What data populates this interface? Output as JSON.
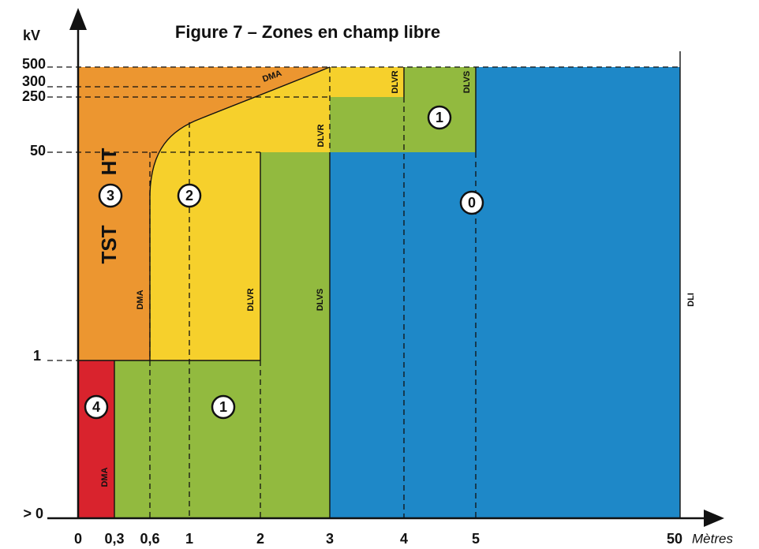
{
  "title": "Figure 7 – Zones en champ libre",
  "y_axis": {
    "unit": "kV",
    "labels": [
      "500",
      "300",
      "250",
      "50",
      "1",
      "> 0"
    ]
  },
  "x_axis": {
    "unit": "Mètres",
    "labels": [
      "0",
      "0,3",
      "0,6",
      "1",
      "2",
      "3",
      "4",
      "5",
      "50"
    ]
  },
  "zones": [
    "3",
    "2",
    "1",
    "0",
    "4",
    "1"
  ],
  "zone_text": [
    "TST",
    "HT"
  ],
  "boundaries": [
    "DMA",
    "DLVR",
    "DLVS",
    "DLI",
    "DMA",
    "DLVR",
    "DLVR",
    "DLVS",
    "DMA"
  ]
}
